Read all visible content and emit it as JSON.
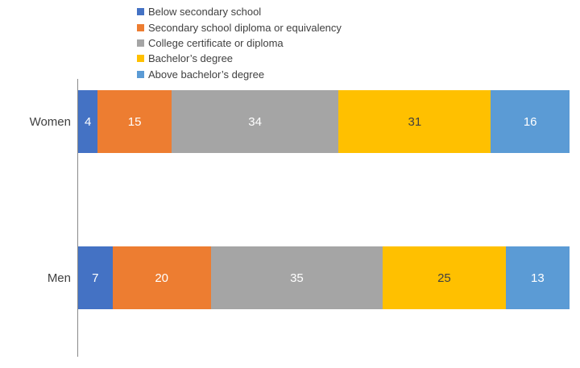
{
  "chart_data": {
    "type": "bar",
    "orientation": "horizontal",
    "stacked": true,
    "title": "",
    "xlabel": "",
    "ylabel": "",
    "xlim": [
      0,
      100
    ],
    "grid": false,
    "legend_position": "top",
    "categories": [
      "Women",
      "Men"
    ],
    "series": [
      {
        "name": "Below secondary school",
        "color": "#4472C4",
        "label_color": "#FFFFFF",
        "values": [
          4,
          7
        ]
      },
      {
        "name": "Secondary school diploma or equivalency",
        "color": "#ED7D31",
        "label_color": "#FFFFFF",
        "values": [
          15,
          20
        ]
      },
      {
        "name": "College certificate or diploma",
        "color": "#A5A5A5",
        "label_color": "#FFFFFF",
        "values": [
          34,
          35
        ]
      },
      {
        "name": "Bachelor’s degree",
        "color": "#FFC000",
        "label_color": "#404040",
        "values": [
          31,
          25
        ]
      },
      {
        "name": "Above bachelor’s degree",
        "color": "#5B9BD5",
        "label_color": "#FFFFFF",
        "values": [
          16,
          13
        ]
      }
    ],
    "axis_line_color": "#898989",
    "category_label_color": "#404040",
    "legend_text_color": "#404040"
  }
}
